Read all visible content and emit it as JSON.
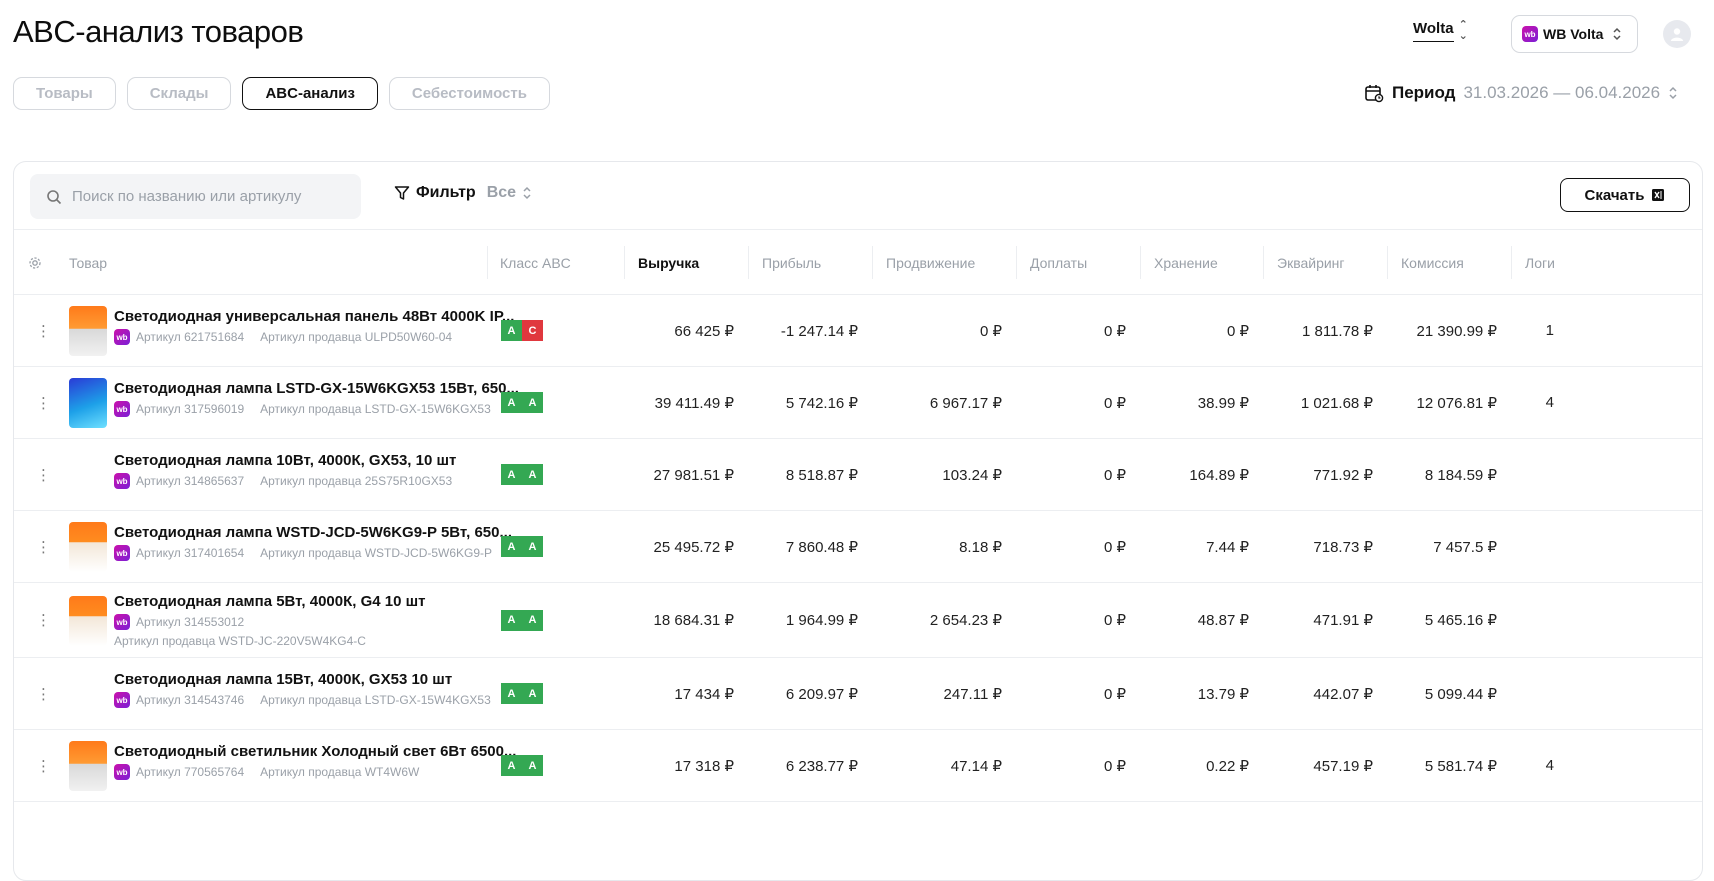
{
  "page_title": "ABC-анализ товаров",
  "tabs": [
    {
      "label": "Товары",
      "active": false
    },
    {
      "label": "Склады",
      "active": false
    },
    {
      "label": "ABC-анализ",
      "active": true
    },
    {
      "label": "Себестоимость",
      "active": false
    }
  ],
  "account": {
    "name": "Wolta"
  },
  "store": {
    "badge": "wb",
    "name": "WB Volta"
  },
  "period": {
    "label": "Период",
    "value": "31.03.2026 — 06.04.2026"
  },
  "search": {
    "placeholder": "Поиск по названию или артикулу",
    "value": ""
  },
  "filter": {
    "label": "Фильтр",
    "value": "Все"
  },
  "download": {
    "label": "Скачать"
  },
  "columns": [
    "Товар",
    "Класс ABC",
    "Выручка",
    "Прибыль",
    "Продвижение",
    "Доплаты",
    "Хранение",
    "Эквайринг",
    "Комиссия",
    "Логи"
  ],
  "active_column": "Выручка",
  "rows": [
    {
      "name": "Светодиодная универсальная панель 48Вт 4000K IP...",
      "article": "Артикул 621751684",
      "seller_article": "Артикул продавца ULPD50W60-04",
      "classes": [
        "A",
        "C"
      ],
      "revenue": "66 425 ₽",
      "profit": "-1 247.14 ₽",
      "promo": "0 ₽",
      "extra": "0 ₽",
      "storage": "0 ₽",
      "acquiring": "1 811.78 ₽",
      "commission": "21 390.99 ₽",
      "logistics": "1",
      "thumb": "orange-panel"
    },
    {
      "name": "Светодиодная лампа LSTD-GX-15W6KGX53 15Вт, 650...",
      "article": "Артикул 317596019",
      "seller_article": "Артикул продавца LSTD-GX-15W6KGX53",
      "classes": [
        "A",
        "A"
      ],
      "revenue": "39 411.49 ₽",
      "profit": "5 742.16 ₽",
      "promo": "6 967.17 ₽",
      "extra": "0 ₽",
      "storage": "38.99 ₽",
      "acquiring": "1 021.68 ₽",
      "commission": "12 076.81 ₽",
      "logistics": "4",
      "thumb": "blue-lamp"
    },
    {
      "name": "Светодиодная лампа 10Вт, 4000К, GX53, 10 шт",
      "article": "Артикул 314865637",
      "seller_article": "Артикул продавца 25S75R10GX53",
      "classes": [
        "A",
        "A"
      ],
      "revenue": "27 981.51 ₽",
      "profit": "8 518.87 ₽",
      "promo": "103.24 ₽",
      "extra": "0 ₽",
      "storage": "164.89 ₽",
      "acquiring": "771.92 ₽",
      "commission": "8 184.59 ₽",
      "logistics": "",
      "thumb": ""
    },
    {
      "name": "Светодиодная лампа WSTD-JCD-5W6KG9-P 5Вт, 650...",
      "article": "Артикул 317401654",
      "seller_article": "Артикул продавца WSTD-JCD-5W6KG9-P",
      "classes": [
        "A",
        "A"
      ],
      "revenue": "25 495.72 ₽",
      "profit": "7 860.48 ₽",
      "promo": "8.18 ₽",
      "extra": "0 ₽",
      "storage": "7.44 ₽",
      "acquiring": "718.73 ₽",
      "commission": "7 457.5 ₽",
      "logistics": "",
      "thumb": "orange-lamp"
    },
    {
      "name": "Светодиодная лампа 5Вт, 4000К, G4 10 шт",
      "article": "Артикул 314553012",
      "seller_article": "Артикул продавца WSTD-JC-220V5W4KG4-C",
      "classes": [
        "A",
        "A"
      ],
      "revenue": "18 684.31 ₽",
      "profit": "1 964.99 ₽",
      "promo": "2 654.23 ₽",
      "extra": "0 ₽",
      "storage": "48.87 ₽",
      "acquiring": "471.91 ₽",
      "commission": "5 465.16 ₽",
      "logistics": "",
      "thumb": "orange-lamp"
    },
    {
      "name": "Светодиодная лампа 15Вт, 4000К, GX53 10 шт",
      "article": "Артикул 314543746",
      "seller_article": "Артикул продавца LSTD-GX-15W4KGX53",
      "classes": [
        "A",
        "A"
      ],
      "revenue": "17 434 ₽",
      "profit": "6 209.97 ₽",
      "promo": "247.11 ₽",
      "extra": "0 ₽",
      "storage": "13.79 ₽",
      "acquiring": "442.07 ₽",
      "commission": "5 099.44 ₽",
      "logistics": "",
      "thumb": ""
    },
    {
      "name": "Светодиодный светильник Холодный свет 6Вт 6500...",
      "article": "Артикул 770565764",
      "seller_article": "Артикул продавца WT4W6W",
      "classes": [
        "A",
        "A"
      ],
      "revenue": "17 318 ₽",
      "profit": "6 238.77 ₽",
      "promo": "47.14 ₽",
      "extra": "0 ₽",
      "storage": "0.22 ₽",
      "acquiring": "457.19 ₽",
      "commission": "5 581.74 ₽",
      "logistics": "4",
      "thumb": "orange-panel"
    }
  ],
  "colors": {
    "class_a": "#34a853",
    "class_c": "#e0383e",
    "wb": "#cb11ab"
  }
}
